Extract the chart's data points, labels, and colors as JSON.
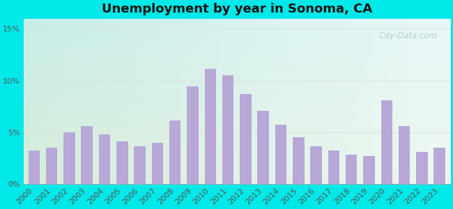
{
  "title": "Unemployment by year in Sonoma, CA",
  "years": [
    2000,
    2001,
    2002,
    2003,
    2004,
    2005,
    2006,
    2007,
    2008,
    2009,
    2010,
    2011,
    2012,
    2013,
    2014,
    2015,
    2016,
    2017,
    2018,
    2019,
    2020,
    2021,
    2022,
    2023
  ],
  "values": [
    3.2,
    3.5,
    5.0,
    5.6,
    4.8,
    4.1,
    3.6,
    4.0,
    6.1,
    9.4,
    11.1,
    10.5,
    8.7,
    7.1,
    5.7,
    4.5,
    3.6,
    3.2,
    2.8,
    2.7,
    8.1,
    5.6,
    3.1,
    3.5
  ],
  "bar_color": "#b8a8d8",
  "yticks": [
    0,
    5,
    10,
    15
  ],
  "ytick_labels": [
    "0%",
    "5%",
    "10%",
    "15%"
  ],
  "ylim": [
    0,
    16
  ],
  "title_fontsize": 13,
  "tick_fontsize": 8,
  "outer_bg_color": "#00e8e8",
  "grid_color": "#dddddd",
  "watermark_text": "City-Data.com",
  "watermark_color": "#b0c8cc",
  "bg_topleft": "#c8ede8",
  "bg_topright": "#e8f8f8",
  "bg_bottomleft": "#d8edda",
  "bg_bottomright": "#eef8f0"
}
